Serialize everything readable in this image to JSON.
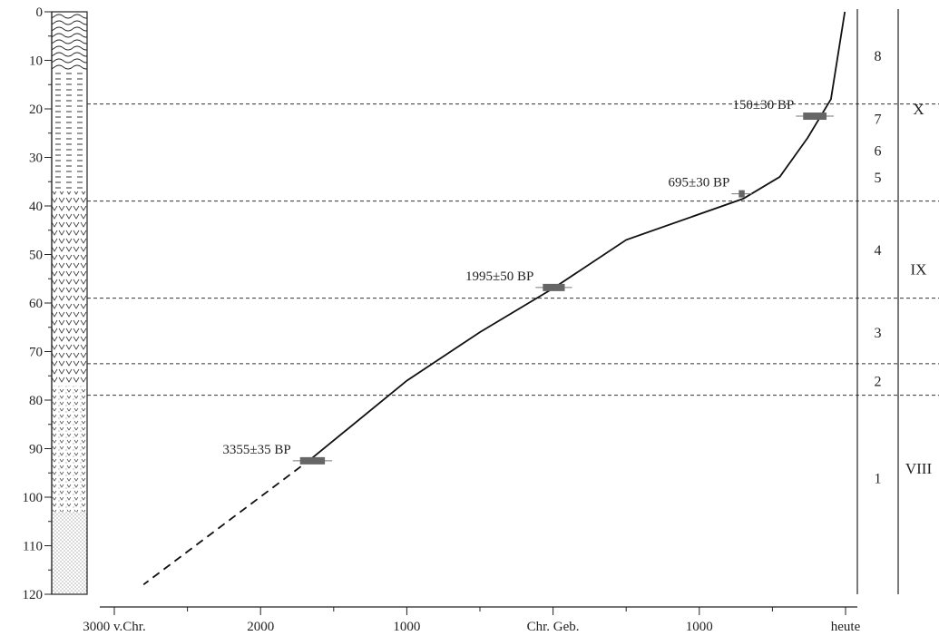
{
  "chart_data": {
    "type": "line",
    "title": "",
    "xlabel": "",
    "ylabel": "",
    "y_axis": {
      "range": [
        0,
        120
      ],
      "ticks": [
        0,
        10,
        20,
        30,
        40,
        50,
        60,
        70,
        80,
        90,
        100,
        110,
        120
      ],
      "inverted": true
    },
    "x_axis": {
      "range": [
        -3000,
        2000
      ],
      "ticks": [
        {
          "value": -3000,
          "label": "3000 v.Chr."
        },
        {
          "value": -2000,
          "label": "2000"
        },
        {
          "value": -1000,
          "label": "1000"
        },
        {
          "value": 0,
          "label": "Chr. Geb."
        },
        {
          "value": 1000,
          "label": "1000"
        },
        {
          "value": 2000,
          "label": "heute"
        }
      ],
      "minor_ticks": [
        -2500,
        -1500,
        -500,
        500,
        1500
      ]
    },
    "series": [
      {
        "style": "solid",
        "points": [
          {
            "x": 1995,
            "y": 0
          },
          {
            "x": 1900,
            "y": 18
          },
          {
            "x": 1740,
            "y": 26
          },
          {
            "x": 1550,
            "y": 34
          },
          {
            "x": 1300,
            "y": 38.5
          },
          {
            "x": 500,
            "y": 47
          },
          {
            "x": 0,
            "y": 57
          },
          {
            "x": -500,
            "y": 66
          },
          {
            "x": -1000,
            "y": 76
          },
          {
            "x": -1650,
            "y": 92
          }
        ]
      },
      {
        "style": "dashed",
        "points": [
          {
            "x": -1650,
            "y": 92
          },
          {
            "x": -2800,
            "y": 118
          }
        ]
      }
    ],
    "dates": [
      {
        "label": "150±30 BP",
        "x": 1800,
        "y": 21.5,
        "range": [
          1710,
          1870
        ]
      },
      {
        "label": "695±30 BP",
        "x": 1290,
        "y": 37.5,
        "range": [
          1270,
          1310
        ]
      },
      {
        "label": "1995±50 BP",
        "x": 0,
        "y": 56.8,
        "range": [
          -70,
          80
        ]
      },
      {
        "label": "3355±35 BP",
        "x": -1650,
        "y": 92.5,
        "range": [
          -1730,
          -1560
        ]
      }
    ],
    "boundaries": [
      19,
      39,
      59,
      72.5,
      79
    ],
    "zones": [
      {
        "label": "8",
        "y": 9
      },
      {
        "label": "7",
        "y": 22
      },
      {
        "label": "6",
        "y": 28.5
      },
      {
        "label": "5",
        "y": 34
      },
      {
        "label": "4",
        "y": 49
      },
      {
        "label": "3",
        "y": 66
      },
      {
        "label": "2",
        "y": 76
      },
      {
        "label": "1",
        "y": 96
      }
    ],
    "periods": [
      {
        "label": "X",
        "y": 20
      },
      {
        "label": "IX",
        "y": 53
      },
      {
        "label": "VIII",
        "y": 94
      }
    ],
    "lithology": [
      {
        "from": 0,
        "to": 12,
        "pattern": "waves"
      },
      {
        "from": 12,
        "to": 37,
        "pattern": "dashes"
      },
      {
        "from": 37,
        "to": 77,
        "pattern": "v-marks"
      },
      {
        "from": 77,
        "to": 103,
        "pattern": "sparse-v"
      },
      {
        "from": 103,
        "to": 120,
        "pattern": "dots"
      }
    ]
  }
}
